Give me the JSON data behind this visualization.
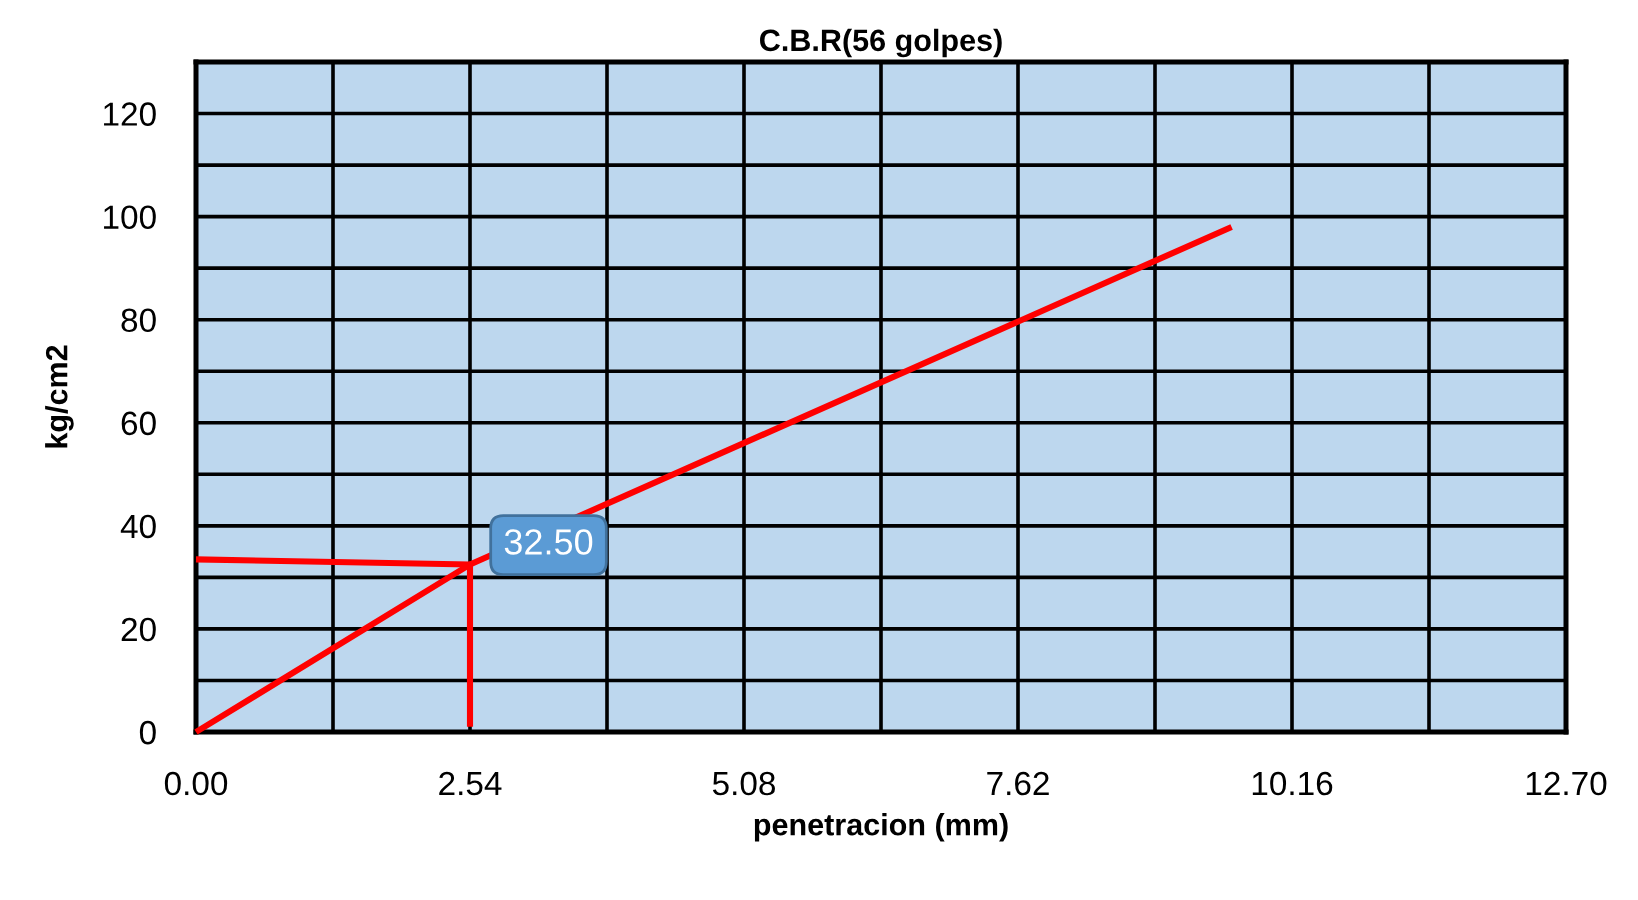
{
  "chart_data": {
    "type": "line",
    "title": "C.B.R(56 golpes)",
    "xlabel": "penetracion (mm)",
    "ylabel": "kg/cm2",
    "xlim": [
      0,
      12.7
    ],
    "ylim": [
      0,
      130
    ],
    "xticks": [
      {
        "value": 0,
        "label": "0.00"
      },
      {
        "value": 1.27,
        "label": null
      },
      {
        "value": 2.54,
        "label": "2.54"
      },
      {
        "value": 3.81,
        "label": null
      },
      {
        "value": 5.08,
        "label": "5.08"
      },
      {
        "value": 6.35,
        "label": null
      },
      {
        "value": 7.62,
        "label": "7.62"
      },
      {
        "value": 8.89,
        "label": null
      },
      {
        "value": 10.16,
        "label": "10.16"
      },
      {
        "value": 11.43,
        "label": null
      },
      {
        "value": 12.7,
        "label": "12.70"
      }
    ],
    "yticks": [
      0,
      {
        "value": 10,
        "label": null
      },
      20,
      {
        "value": 30,
        "label": null
      },
      40,
      {
        "value": 50,
        "label": null
      },
      60,
      {
        "value": 70,
        "label": null
      },
      80,
      {
        "value": 90,
        "label": null
      },
      100,
      {
        "value": 110,
        "label": null
      },
      120,
      {
        "value": 130,
        "label": null
      }
    ],
    "grid": true,
    "line_style": "solid",
    "marker": "none",
    "series": [
      {
        "color": "#ff0000",
        "x": [
          0,
          2.54,
          9.6
        ],
        "values": [
          0,
          32.5,
          98
        ]
      },
      {
        "color": "#ff0000",
        "x": [
          0,
          2.54
        ],
        "values": [
          33.5,
          32.5
        ]
      },
      {
        "color": "#ff0000",
        "x": [
          2.54,
          2.54
        ],
        "values": [
          32.5,
          1
        ]
      }
    ],
    "annotations": [
      {
        "text": "32.50",
        "x": 2.54,
        "y": 32.5
      }
    ]
  }
}
